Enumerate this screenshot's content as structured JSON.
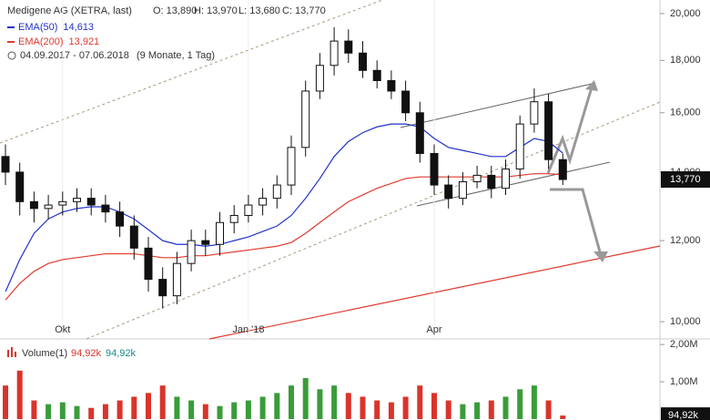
{
  "chart_data": [
    {
      "type": "candlestick",
      "title": "Medigene AG (XETRA, last)",
      "quote": [
        "O: 13,890",
        "H: 13,970",
        "L: 13,680",
        "C: 13,770"
      ],
      "date_range": "04.09.2017 - 07.06.2018",
      "period": "(9 Monate, 1 Tag)",
      "categories": [
        null,
        null,
        null,
        null,
        "Okt",
        null,
        null,
        null,
        null,
        null,
        null,
        null,
        null,
        null,
        null,
        null,
        null,
        "Jan '18",
        null,
        null,
        null,
        null,
        null,
        null,
        null,
        null,
        null,
        null,
        null,
        null,
        "Apr",
        null,
        null,
        null,
        null,
        null,
        null,
        null,
        null,
        null
      ],
      "open": [
        14500,
        14000,
        13100,
        12900,
        13000,
        13100,
        13200,
        13000,
        12800,
        12400,
        11800,
        11000,
        10600,
        11400,
        12000,
        11900,
        12500,
        12700,
        13000,
        13200,
        13600,
        14800,
        16800,
        17800,
        18800,
        18300,
        17600,
        17200,
        16800,
        16000,
        14600,
        13600,
        13200,
        13700,
        13900,
        13500,
        14100,
        15600,
        16400,
        14400
      ],
      "high": [
        14900,
        14300,
        13400,
        13300,
        13400,
        13500,
        13500,
        13300,
        13100,
        12700,
        12100,
        11300,
        11700,
        12300,
        12300,
        12800,
        13000,
        13300,
        13500,
        13900,
        15200,
        17200,
        18300,
        19400,
        19300,
        18800,
        18000,
        17600,
        17200,
        16400,
        14900,
        13900,
        14000,
        14200,
        14200,
        14400,
        15900,
        16900,
        16700,
        14600
      ],
      "low": [
        13600,
        12700,
        12500,
        12600,
        12700,
        12800,
        12700,
        12500,
        12100,
        11500,
        10700,
        10300,
        10400,
        11200,
        11600,
        11600,
        12200,
        12500,
        12700,
        12900,
        13300,
        14500,
        16500,
        17400,
        17900,
        17300,
        16900,
        16500,
        15700,
        14300,
        13300,
        12900,
        13000,
        13500,
        13200,
        13300,
        13800,
        15300,
        14100,
        13600
      ],
      "close": [
        14000,
        13100,
        12900,
        13000,
        13100,
        13200,
        13000,
        12800,
        12400,
        11800,
        11000,
        10600,
        11400,
        12000,
        11900,
        12500,
        12700,
        13000,
        13200,
        13600,
        14800,
        16800,
        17800,
        18800,
        18300,
        17600,
        17200,
        16800,
        16000,
        14600,
        13600,
        13200,
        13700,
        13900,
        13500,
        14100,
        15600,
        16400,
        14400,
        13770
      ],
      "series": [
        {
          "name": "EMA(50)",
          "color": "#2233cc",
          "last_label": "14,613",
          "values": [
            10700,
            11500,
            12200,
            12600,
            12800,
            12900,
            12950,
            12950,
            12800,
            12600,
            12300,
            12000,
            11900,
            11900,
            11850,
            11900,
            12000,
            12100,
            12250,
            12400,
            12700,
            13200,
            13800,
            14500,
            15000,
            15300,
            15500,
            15600,
            15600,
            15500,
            15100,
            14800,
            14700,
            14600,
            14500,
            14500,
            14800,
            15100,
            15000,
            14613
          ]
        },
        {
          "name": "EMA(200)",
          "color": "#e03a2e",
          "last_label": "13,921",
          "values": [
            10500,
            10900,
            11200,
            11400,
            11500,
            11550,
            11600,
            11650,
            11650,
            11650,
            11600,
            11550,
            11550,
            11600,
            11600,
            11650,
            11700,
            11750,
            11800,
            11850,
            11950,
            12200,
            12500,
            12800,
            13100,
            13300,
            13500,
            13650,
            13800,
            13850,
            13850,
            13850,
            13850,
            13850,
            13850,
            13850,
            13900,
            13950,
            13950,
            13921
          ]
        }
      ],
      "last_price": {
        "value": 13770,
        "label": "13,770"
      },
      "log_scale": true,
      "ylim": [
        9620,
        20620
      ],
      "yticks": [
        {
          "value": 10000,
          "label": "10,000"
        },
        {
          "value": 12000,
          "label": "12,000"
        },
        {
          "value": 14000,
          "label": "14,000"
        },
        {
          "value": 16000,
          "label": "16,000"
        },
        {
          "value": 18000,
          "label": "18,000"
        },
        {
          "value": 20000,
          "label": "20,000"
        }
      ],
      "up_color": "#ffffff",
      "down_color": "#111111"
    },
    {
      "type": "bar",
      "title": "Volume(1)",
      "last_labels": [
        "94,92k",
        "94,92k"
      ],
      "values": [
        900000,
        1300000,
        500000,
        400000,
        450000,
        350000,
        300000,
        400000,
        500000,
        600000,
        700000,
        900000,
        600000,
        500000,
        400000,
        350000,
        450000,
        500000,
        600000,
        700000,
        900000,
        1100000,
        800000,
        900000,
        700000,
        600000,
        500000,
        450000,
        600000,
        900000,
        700000,
        500000,
        400000,
        450000,
        500000,
        600000,
        800000,
        900000,
        500000,
        94920
      ],
      "last_value": {
        "value": 94920,
        "label": "94,92k"
      },
      "ylim": [
        0,
        2150000
      ],
      "yticks": [
        {
          "value": 1000000,
          "label": "1,00M"
        },
        {
          "value": 2000000,
          "label": "2,00M"
        }
      ],
      "up_color": "#3a9c3a",
      "down_color": "#d9342b"
    }
  ]
}
